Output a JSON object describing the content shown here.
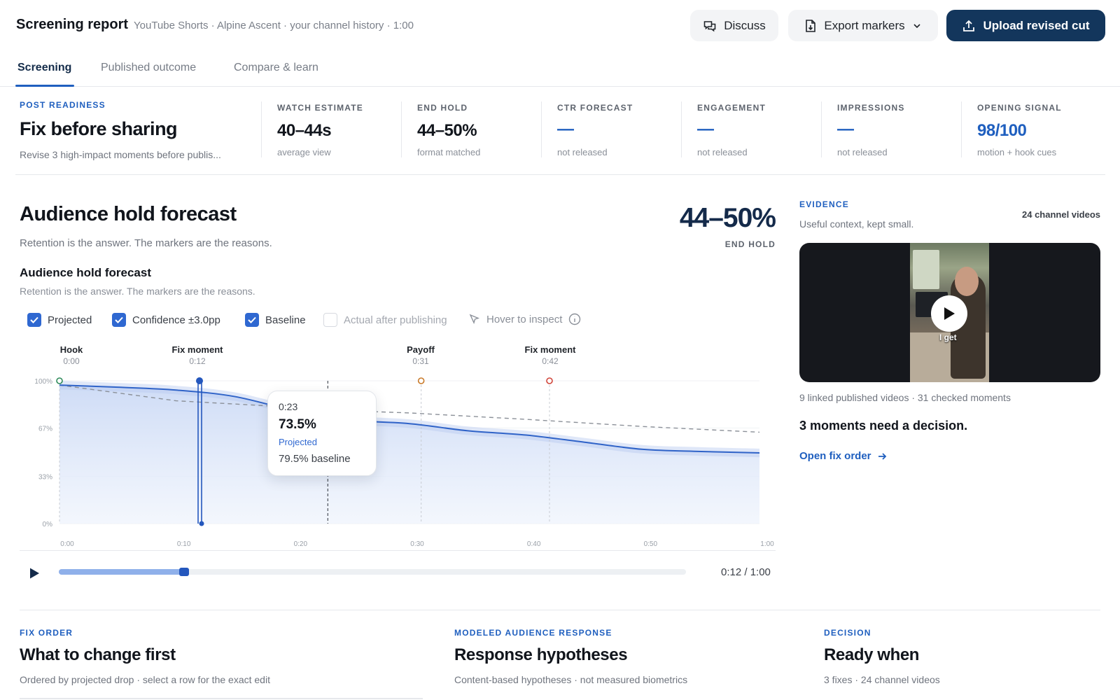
{
  "header": {
    "title": "Screening report",
    "meta": "YouTube Shorts · Alpine Ascent · your channel history · 1:00",
    "discuss_label": "Discuss",
    "export_label": "Export markers",
    "upload_label": "Upload revised cut"
  },
  "tabs": [
    {
      "label": "Screening",
      "active": true
    },
    {
      "label": "Published outcome",
      "active": false
    },
    {
      "label": "Compare & learn",
      "active": false
    }
  ],
  "readiness": {
    "eyebrow": "POST READINESS",
    "title": "Fix before sharing",
    "sub": "Revise 3 high-impact moments before publis..."
  },
  "stats": [
    {
      "label": "WATCH ESTIMATE",
      "value": "40–44s",
      "sub": "average view"
    },
    {
      "label": "END HOLD",
      "value": "44–50%",
      "sub": "format matched"
    },
    {
      "label": "CTR FORECAST",
      "value": "—",
      "sub": "not released"
    },
    {
      "label": "ENGAGEMENT",
      "value": "—",
      "sub": "not released"
    },
    {
      "label": "IMPRESSIONS",
      "value": "—",
      "sub": "not released"
    },
    {
      "label": "OPENING SIGNAL",
      "value": "98/100",
      "sub": "motion + hook cues"
    }
  ],
  "forecast": {
    "title": "Audience hold forecast",
    "sub": "Retention is the answer. The markers are the reasons.",
    "end_hold_value": "44–50%",
    "end_hold_label": "END HOLD",
    "chart_title": "Audience hold forecast",
    "chart_sub": "Retention is the answer. The markers are the reasons."
  },
  "toggles": [
    {
      "label": "Projected",
      "checked": true
    },
    {
      "label": "Confidence ±3.0pp",
      "checked": true
    },
    {
      "label": "Baseline",
      "checked": true
    },
    {
      "label": "Actual after publishing",
      "checked": false
    }
  ],
  "hover_hint": "Hover to inspect",
  "chart_data": {
    "type": "line",
    "x_unit": "seconds",
    "x_ticks": [
      "0:00",
      "0:10",
      "0:20",
      "0:30",
      "0:40",
      "0:50",
      "1:00"
    ],
    "y_ticks": [
      "100%",
      "67%",
      "33%",
      "0%"
    ],
    "xlim": [
      0,
      60
    ],
    "ylim": [
      0,
      100
    ],
    "series": [
      {
        "name": "Projected",
        "x": [
          0,
          5,
          10,
          15,
          20,
          23,
          25,
          30,
          35,
          40,
          45,
          50,
          55,
          60
        ],
        "y": [
          97,
          95.5,
          93.5,
          89,
          79,
          73.5,
          72,
          70,
          65,
          62,
          57,
          52,
          50.5,
          49.5
        ]
      },
      {
        "name": "Baseline",
        "x": [
          0,
          10,
          20,
          23,
          30,
          40,
          50,
          60
        ],
        "y": [
          97,
          86,
          81.5,
          79.5,
          77.5,
          73,
          68,
          64
        ]
      }
    ],
    "confidence_pp": 3.0,
    "markers": [
      {
        "label": "Hook",
        "time": "0:00",
        "t": 0,
        "color": "#2e8a5a"
      },
      {
        "label": "Fix moment",
        "time": "0:12",
        "t": 12,
        "color": "#2457bd"
      },
      {
        "label": "Payoff",
        "time": "0:31",
        "t": 31,
        "color": "#c97a2a"
      },
      {
        "label": "Fix moment",
        "time": "0:42",
        "t": 42,
        "color": "#d0453a"
      }
    ],
    "hover_t": 23,
    "playhead_t": 12
  },
  "tooltip": {
    "time": "0:23",
    "value": "73.5%",
    "kind": "Projected",
    "baseline": "79.5% baseline"
  },
  "player": {
    "time": "0:12 / 1:00",
    "progress": 0.2
  },
  "evidence": {
    "eyebrow": "EVIDENCE",
    "count": "24 channel videos",
    "sub": "Useful context, kept small.",
    "video_caption": "I get",
    "linked": "9 linked published videos · 31 checked moments",
    "decision": "3 moments need a decision.",
    "link": "Open fix order"
  },
  "bottom": [
    {
      "eyebrow": "FIX ORDER",
      "title": "What to change first",
      "sub": "Ordered by projected drop · select a row for the exact edit"
    },
    {
      "eyebrow": "MODELED AUDIENCE RESPONSE",
      "title": "Response hypotheses",
      "sub": "Content-based hypotheses · not measured biometrics"
    },
    {
      "eyebrow": "DECISION",
      "title": "Ready when",
      "sub": "3 fixes · 24 channel videos"
    }
  ]
}
